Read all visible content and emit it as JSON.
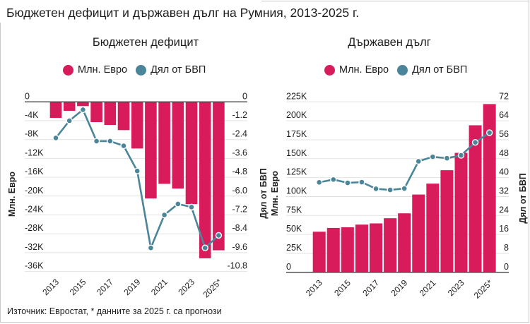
{
  "page": {
    "title": "Бюджетен дефицит и държавен дълг на Румния, 2013-2025 г.",
    "source": "Източник: Евростат, * данните за 2025 г. са прогнози"
  },
  "colors": {
    "bars": "#d81c5b",
    "line": "#4a8599",
    "marker_stroke": "#ffffff",
    "grid": "#e2e2e2",
    "zero_line": "#3a3a3a"
  },
  "chart_data": [
    {
      "id": "deficit",
      "type": "bar+line",
      "title": "Бюджетен дефицит",
      "legend_position": "top-center",
      "legend": [
        {
          "label": "Млн. Евро",
          "color": "#d81c5b"
        },
        {
          "label": "Дял от БВП",
          "color": "#4a8599"
        }
      ],
      "categories": [
        "2013",
        "2014",
        "2015",
        "2016",
        "2017",
        "2018",
        "2019",
        "2020",
        "2021",
        "2022",
        "2023",
        "2024",
        "2025*"
      ],
      "x_tick_labels": [
        "2013",
        "2015",
        "2017",
        "2019",
        "2021",
        "2023",
        "2025*"
      ],
      "series": [
        {
          "name": "Млн. Евро",
          "type": "bar",
          "axis": "left",
          "values": [
            -3400,
            -1900,
            -900,
            -4300,
            -4900,
            -6000,
            -9900,
            -20500,
            -17400,
            -18400,
            -21700,
            -33200,
            -31500
          ]
        },
        {
          "name": "Дял от БВП",
          "type": "line",
          "axis": "right",
          "values": [
            -2.3,
            -1.2,
            -0.5,
            -2.5,
            -2.5,
            -2.8,
            -4.4,
            -9.3,
            -7.2,
            -6.5,
            -6.7,
            -9.3,
            -8.5
          ]
        }
      ],
      "y_left": {
        "label": "Млн. Евро",
        "range": [
          -36000,
          0
        ],
        "ticks": [
          0,
          -4000,
          -8000,
          -12000,
          -16000,
          -20000,
          -24000,
          -28000,
          -32000,
          -36000
        ],
        "tick_labels": [
          "0",
          "-4K",
          "-8K",
          "-12K",
          "-16K",
          "-20K",
          "-24K",
          "-28K",
          "-32K",
          "-36K"
        ]
      },
      "y_right": {
        "label": "",
        "range": [
          -10.8,
          0
        ],
        "ticks": [
          0,
          -1.2,
          -2.4,
          -3.6,
          -4.8,
          -6.0,
          -7.2,
          -8.4,
          -9.6,
          -10.8
        ],
        "tick_labels": [
          "0",
          "-1.2",
          "-2.4",
          "-3.6",
          "-4.8",
          "-6.0",
          "-7.2",
          "-8.4",
          "-9.6",
          "-10.8"
        ]
      },
      "grid": true
    },
    {
      "id": "debt",
      "type": "bar+line",
      "title": "Държавен дълг",
      "legend_position": "top-center",
      "legend": [
        {
          "label": "Млн. Евро",
          "color": "#d81c5b"
        },
        {
          "label": "Дял от БВП",
          "color": "#4a8599"
        }
      ],
      "categories": [
        "2013",
        "2014",
        "2015",
        "2016",
        "2017",
        "2018",
        "2019",
        "2020",
        "2021",
        "2022",
        "2023",
        "2024",
        "2025*"
      ],
      "x_tick_labels": [
        "2013",
        "2015",
        "2017",
        "2019",
        "2021",
        "2023",
        "2025*"
      ],
      "series": [
        {
          "name": "Млн. Евро",
          "type": "bar",
          "axis": "left",
          "values": [
            53600,
            58600,
            59500,
            63000,
            64600,
            71400,
            77900,
            102700,
            117100,
            134800,
            157700,
            194100,
            222100
          ]
        },
        {
          "name": "Дял от БВП",
          "type": "line",
          "axis": "right",
          "values": [
            38.0,
            39.2,
            37.8,
            38.1,
            35.3,
            34.8,
            35.4,
            46.9,
            48.8,
            48.2,
            49.4,
            54.9,
            59.0
          ]
        }
      ],
      "y_left": {
        "label": "Млн. Евро",
        "extra_label": "Дял от БВП",
        "range": [
          0,
          225000
        ],
        "ticks": [
          0,
          25000,
          50000,
          75000,
          100000,
          125000,
          150000,
          175000,
          200000,
          225000
        ],
        "tick_labels": [
          "0",
          "25K",
          "50K",
          "75K",
          "100K",
          "125K",
          "150K",
          "175K",
          "200K",
          "225K"
        ]
      },
      "y_right": {
        "label": "Дял от БВП",
        "range": [
          0,
          72
        ],
        "ticks": [
          0,
          8,
          16,
          24,
          32,
          40,
          48,
          56,
          64,
          72
        ],
        "tick_labels": [
          "0",
          "8",
          "16",
          "24",
          "32",
          "40",
          "48",
          "56",
          "64",
          "72"
        ]
      },
      "grid": true
    }
  ]
}
